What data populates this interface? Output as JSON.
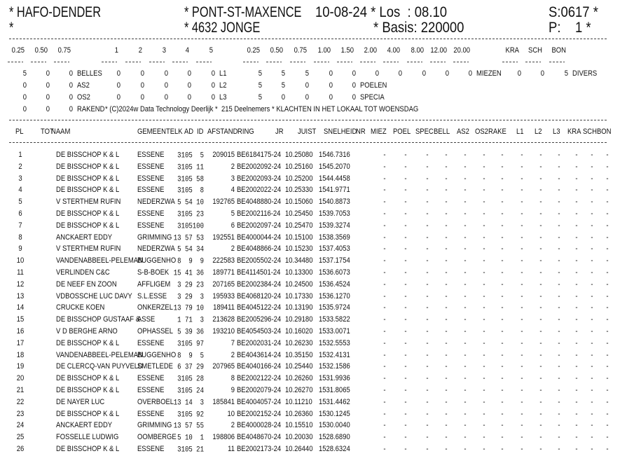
{
  "header": {
    "org": "* HAFO-DENDER",
    "org_line2": "*",
    "race": "* PONT-ST-MAXENCE",
    "race_line2": "* 4632 JONGE",
    "date_los": "10-08-24 * Los  : 08.10",
    "basis": "* Basis: 220000",
    "s_code": "S:0617 *",
    "page": "P:    1 *"
  },
  "summary": {
    "labels_left": [
      "0.25",
      "0.50",
      "0.75"
    ],
    "labels_mid": [
      "1",
      "2",
      "3",
      "4",
      "5"
    ],
    "labels_right": [
      "0.25",
      "0.50",
      "0.75",
      "1.00",
      "1.50",
      "2.00",
      "4.00",
      "8.00",
      "12.00",
      "20.00"
    ],
    "labels_kra": [
      "KRA",
      "SCH",
      "BON"
    ],
    "rows": [
      {
        "left": [
          "5",
          "0",
          "0"
        ],
        "left_label": "BELLES",
        "mid": [
          "0",
          "0",
          "0",
          "0",
          "0"
        ],
        "mid_label": "L1",
        "right": [
          "5",
          "5",
          "5",
          "0",
          "0",
          "0",
          "0",
          "0",
          "0",
          "0"
        ],
        "right_label": "MIEZEN",
        "kra": [
          "0",
          "0",
          "5"
        ],
        "kra_label": "DIVERS"
      },
      {
        "left": [
          "0",
          "0",
          "0"
        ],
        "left_label": "AS2",
        "mid": [
          "0",
          "0",
          "0",
          "0",
          "0"
        ],
        "mid_label": "L2",
        "right": [
          "5",
          "5",
          "0",
          "0",
          "0"
        ],
        "right_label": "POELEN"
      },
      {
        "left": [
          "0",
          "0",
          "0"
        ],
        "left_label": "OS2",
        "mid": [
          "0",
          "0",
          "0",
          "0",
          "0"
        ],
        "mid_label": "L3",
        "right": [
          "5",
          "0",
          "0",
          "0",
          "0"
        ],
        "right_label": "SPECIA"
      },
      {
        "left": [
          "0",
          "0",
          "0"
        ],
        "left_label": "RAKEND",
        "footer": "* (C)2024w Data Technology Deerlijk *  215 Deelnemers * KLACHTEN IN HET LOKAAL TOT WOENSDAG"
      }
    ]
  },
  "table": {
    "columns": [
      "PL",
      "TOT",
      "NAAM",
      "GEMEENTE",
      "LK",
      "AD",
      "ID",
      "AFSTAND",
      "RING",
      "JR",
      "JUIST",
      "SNELHEID",
      "NR",
      "MIEZ",
      "POEL",
      "SPEC",
      "BELL",
      "AS2",
      "OS2",
      "RAKE",
      "L1",
      "L2",
      "L3",
      "KRA",
      "SCH",
      "BON"
    ],
    "empty_mark": "-",
    "rows": [
      {
        "pl": "1",
        "naam": "DE BISSCHOP K & L",
        "gemeente": "ESSENE",
        "lk_ad_id": " 3105  5",
        "afstand": "209015",
        "ring": "BE6184175-24",
        "juist": "10.25080",
        "snelheid": "1546.7316"
      },
      {
        "pl": "2",
        "naam": "DE BISSCHOP K & L",
        "gemeente": "ESSENE",
        "lk_ad_id": " 3105 11",
        "afstand": "2",
        "ring": "BE2002092-24",
        "juist": "10.25160",
        "snelheid": "1545.2070"
      },
      {
        "pl": "3",
        "naam": "DE BISSCHOP K & L",
        "gemeente": "ESSENE",
        "lk_ad_id": " 3105 58",
        "afstand": "3",
        "ring": "BE2002093-24",
        "juist": "10.25200",
        "snelheid": "1544.4458"
      },
      {
        "pl": "4",
        "naam": "DE BISSCHOP K & L",
        "gemeente": "ESSENE",
        "lk_ad_id": " 3105  8",
        "afstand": "4",
        "ring": "BE2002022-24",
        "juist": "10.25330",
        "snelheid": "1541.9771"
      },
      {
        "pl": "5",
        "naam": "V STERTHEM RUFIN",
        "gemeente": "NEDERZWA",
        "lk_ad_id": " 5 54 10",
        "afstand": "192765",
        "ring": "BE4048880-24",
        "juist": "10.15060",
        "snelheid": "1540.8873"
      },
      {
        "pl": "6",
        "naam": "DE BISSCHOP K & L",
        "gemeente": "ESSENE",
        "lk_ad_id": " 3105 23",
        "afstand": "5",
        "ring": "BE2002116-24",
        "juist": "10.25450",
        "snelheid": "1539.7053"
      },
      {
        "pl": "7",
        "naam": "DE BISSCHOP K & L",
        "gemeente": "ESSENE",
        "lk_ad_id": " 3105100",
        "afstand": "6",
        "ring": "BE2002097-24",
        "juist": "10.25470",
        "snelheid": "1539.3274"
      },
      {
        "pl": "8",
        "naam": "ANCKAERT EDDY",
        "gemeente": "GRIMMING",
        "lk_ad_id": "13 57 53",
        "afstand": "192551",
        "ring": "BE4000044-24",
        "juist": "10.15100",
        "snelheid": "1538.3569"
      },
      {
        "pl": "9",
        "naam": "V STERTHEM RUFIN",
        "gemeente": "NEDERZWA",
        "lk_ad_id": " 5 54 34",
        "afstand": "2",
        "ring": "BE4048866-24",
        "juist": "10.15230",
        "snelheid": "1537.4053"
      },
      {
        "pl": "10",
        "naam": "VANDENABBEEL-PELEMAN",
        "gemeente": "BUGGENHO",
        "lk_ad_id": " 8  9  9",
        "afstand": "222583",
        "ring": "BE2005502-24",
        "juist": "10.34480",
        "snelheid": "1537.1754"
      },
      {
        "pl": "11",
        "naam": "VERLINDEN C&C",
        "gemeente": "S-B-BOEK",
        "lk_ad_id": "15 41 36",
        "afstand": "189771",
        "ring": "BE4114501-24",
        "juist": "10.13300",
        "snelheid": "1536.6073"
      },
      {
        "pl": "12",
        "naam": "DE NEEF EN ZOON",
        "gemeente": "AFFLIGEM",
        "lk_ad_id": " 3 29 23",
        "afstand": "207165",
        "ring": "BE2002384-24",
        "juist": "10.24500",
        "snelheid": "1536.4524"
      },
      {
        "pl": "13",
        "naam": "VDBOSSCHE LUC DAVY",
        "gemeente": "S.L.ESSE",
        "lk_ad_id": " 3 29  3",
        "afstand": "195933",
        "ring": "BE4068120-24",
        "juist": "10.17330",
        "snelheid": "1536.1270"
      },
      {
        "pl": "14",
        "naam": "CRUCKE KOEN",
        "gemeente": "ONKERZEL",
        "lk_ad_id": "13 79 10",
        "afstand": "189411",
        "ring": "BE4045122-24",
        "juist": "10.13190",
        "snelheid": "1535.9724"
      },
      {
        "pl": "15",
        "naam": "DE BISSCHOP GUSTAAF &",
        "gemeente": "ASSE",
        "lk_ad_id": " 1 71  3",
        "afstand": "213628",
        "ring": "BE2005296-24",
        "juist": "10.29180",
        "snelheid": "1533.5822"
      },
      {
        "pl": "16",
        "naam": "V D BERGHE ARNO",
        "gemeente": "OPHASSEL",
        "lk_ad_id": " 5 39 36",
        "afstand": "193210",
        "ring": "BE4054503-24",
        "juist": "10.16020",
        "snelheid": "1533.0071"
      },
      {
        "pl": "17",
        "naam": "DE BISSCHOP K & L",
        "gemeente": "ESSENE",
        "lk_ad_id": " 3105 97",
        "afstand": "7",
        "ring": "BE2002031-24",
        "juist": "10.26230",
        "snelheid": "1532.5553"
      },
      {
        "pl": "18",
        "naam": "VANDENABBEEL-PELEMAN",
        "gemeente": "BUGGENHO",
        "lk_ad_id": " 8  9  5",
        "afstand": "2",
        "ring": "BE4043614-24",
        "juist": "10.35150",
        "snelheid": "1532.4131"
      },
      {
        "pl": "19",
        "naam": "DE CLERCQ-VAN PUYVELD",
        "gemeente": "SMETLEDE",
        "lk_ad_id": " 6 37 29",
        "afstand": "207965",
        "ring": "BE4040166-24",
        "juist": "10.25440",
        "snelheid": "1532.1586"
      },
      {
        "pl": "20",
        "naam": "DE BISSCHOP K & L",
        "gemeente": "ESSENE",
        "lk_ad_id": " 3105 28",
        "afstand": "8",
        "ring": "BE2002122-24",
        "juist": "10.26260",
        "snelheid": "1531.9936"
      },
      {
        "pl": "21",
        "naam": "DE BISSCHOP K & L",
        "gemeente": "ESSENE",
        "lk_ad_id": " 3105 24",
        "afstand": "9",
        "ring": "BE2002079-24",
        "juist": "10.26270",
        "snelheid": "1531.8065"
      },
      {
        "pl": "22",
        "naam": "DE NAYER LUC",
        "gemeente": "OVERBOEL",
        "lk_ad_id": "13 14  3",
        "afstand": "185841",
        "ring": "BE4004057-24",
        "juist": "10.11210",
        "snelheid": "1531.4462"
      },
      {
        "pl": "23",
        "naam": "DE BISSCHOP K & L",
        "gemeente": "ESSENE",
        "lk_ad_id": " 3105 92",
        "afstand": "10",
        "ring": "BE2002152-24",
        "juist": "10.26360",
        "snelheid": "1530.1245"
      },
      {
        "pl": "24",
        "naam": "ANCKAERT EDDY",
        "gemeente": "GRIMMING",
        "lk_ad_id": "13 57 55",
        "afstand": "2",
        "ring": "BE4000028-24",
        "juist": "10.15510",
        "snelheid": "1530.0040"
      },
      {
        "pl": "25",
        "naam": "FOSSELLE LUDWIG",
        "gemeente": "OOMBERGE",
        "lk_ad_id": " 5 10  1",
        "afstand": "198806",
        "ring": "BE4048670-24",
        "juist": "10.20030",
        "snelheid": "1528.6890"
      },
      {
        "pl": "26",
        "naam": "DE BISSCHOP K & L",
        "gemeente": "ESSENE",
        "lk_ad_id": " 3105 21",
        "afstand": "11",
        "ring": "BE2002173-24",
        "juist": "10.26440",
        "snelheid": "1528.6324"
      }
    ]
  }
}
